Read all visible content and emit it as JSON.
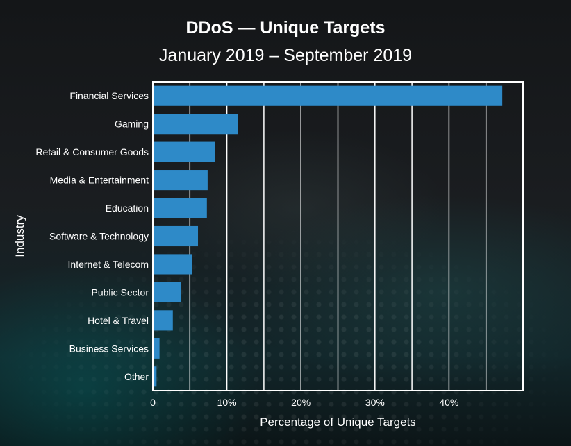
{
  "chart_data": {
    "type": "bar",
    "orientation": "horizontal",
    "title": "DDoS — Unique Targets",
    "subtitle": "January 2019 – September 2019",
    "xlabel": "Percentage of Unique Targets",
    "ylabel": "Industry",
    "categories": [
      "Financial Services",
      "Gaming",
      "Retail & Consumer Goods",
      "Media & Entertainment",
      "Education",
      "Software & Technology",
      "Internet & Telecom",
      "Public Sector",
      "Hotel & Travel",
      "Business Services",
      "Other"
    ],
    "values": [
      47.2,
      11.5,
      8.4,
      7.4,
      7.3,
      6.1,
      5.3,
      3.8,
      2.7,
      0.9,
      0.5
    ],
    "xlim": [
      0,
      50
    ],
    "xticks": [
      0,
      10,
      20,
      30,
      40
    ],
    "xtick_labels": [
      "0",
      "10%",
      "20%",
      "30%",
      "40%"
    ],
    "grid": "vertical",
    "bar_color": "#2e8ac8"
  }
}
